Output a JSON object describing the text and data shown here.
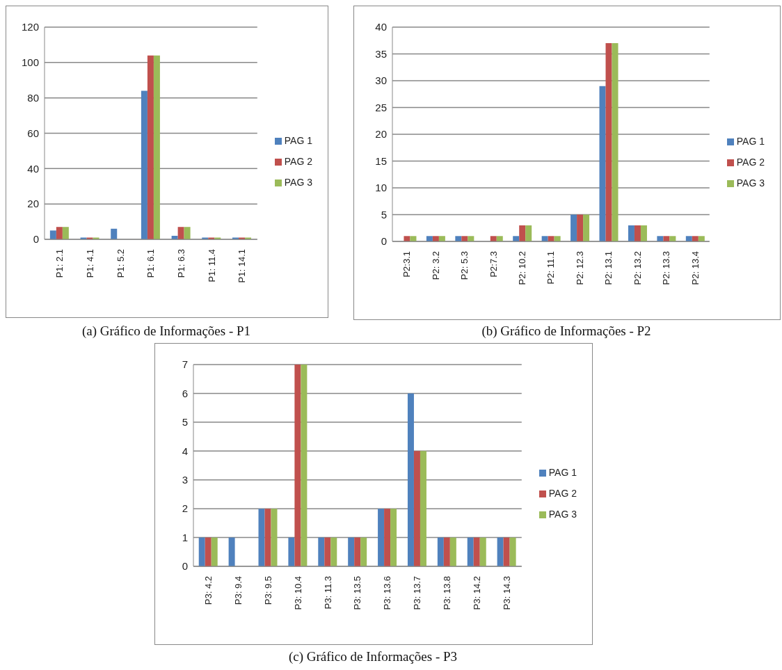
{
  "chart_data": [
    {
      "type": "bar",
      "annotations": [
        "(a) Gráfico de Informações - P1"
      ],
      "categories": [
        "P1: 2.1",
        "P1: 4.1",
        "P1: 5.2",
        "P1: 6.1",
        "P1: 6.3",
        "P1: 11.4",
        "P1: 14.1"
      ],
      "series": [
        {
          "name": "PAG 1",
          "color": "#4f81bd",
          "values": [
            5,
            1,
            6,
            84,
            2,
            1,
            1
          ]
        },
        {
          "name": "PAG 2",
          "color": "#c0504d",
          "values": [
            7,
            1,
            0,
            104,
            7,
            1,
            1
          ]
        },
        {
          "name": "PAG 3",
          "color": "#9bbb59",
          "values": [
            7,
            1,
            0,
            104,
            7,
            1,
            1
          ]
        }
      ],
      "ylim": [
        0,
        120
      ],
      "yticks": [
        0,
        20,
        40,
        60,
        80,
        100,
        120
      ],
      "grid": "y",
      "legend": "right"
    },
    {
      "type": "bar",
      "annotations": [
        "(b) Gráfico de Informações - P2"
      ],
      "categories": [
        "P2:3.1",
        "P2: 3.2",
        "P2: 5.3",
        "P2:7.3",
        "P2: 10.2",
        "P2: 11.1",
        "P2: 12.3",
        "P2: 13.1",
        "P2: 13.2",
        "P2: 13.3",
        "P2: 13.4"
      ],
      "series": [
        {
          "name": "PAG 1",
          "color": "#4f81bd",
          "values": [
            0,
            1,
            1,
            0,
            1,
            1,
            5,
            29,
            3,
            1,
            1
          ]
        },
        {
          "name": "PAG 2",
          "color": "#c0504d",
          "values": [
            1,
            1,
            1,
            1,
            3,
            1,
            5,
            37,
            3,
            1,
            1
          ]
        },
        {
          "name": "PAG 3",
          "color": "#9bbb59",
          "values": [
            1,
            1,
            1,
            1,
            3,
            1,
            5,
            37,
            3,
            1,
            1
          ]
        }
      ],
      "ylim": [
        0,
        40
      ],
      "yticks": [
        0,
        5,
        10,
        15,
        20,
        25,
        30,
        35,
        40
      ],
      "grid": "y",
      "legend": "right"
    },
    {
      "type": "bar",
      "annotations": [
        "(c) Gráfico de Informações - P3"
      ],
      "categories": [
        "P3: 4.2",
        "P3: 9.4",
        "P3: 9.5",
        "P3: 10.4",
        "P3: 11.3",
        "P3: 13.5",
        "P3: 13.6",
        "P3: 13.7",
        "P3: 13.8",
        "P3: 14.2",
        "P3: 14.3"
      ],
      "series": [
        {
          "name": "PAG 1",
          "color": "#4f81bd",
          "values": [
            1,
            1,
            2,
            1,
            1,
            1,
            2,
            6,
            1,
            1,
            1
          ]
        },
        {
          "name": "PAG 2",
          "color": "#c0504d",
          "values": [
            1,
            0,
            2,
            7,
            1,
            1,
            2,
            4,
            1,
            1,
            1
          ]
        },
        {
          "name": "PAG 3",
          "color": "#9bbb59",
          "values": [
            1,
            0,
            2,
            7,
            1,
            1,
            2,
            4,
            1,
            1,
            1
          ]
        }
      ],
      "ylim": [
        0,
        7
      ],
      "yticks": [
        0,
        1,
        2,
        3,
        4,
        5,
        6,
        7
      ],
      "grid": "y",
      "legend": "right"
    }
  ]
}
